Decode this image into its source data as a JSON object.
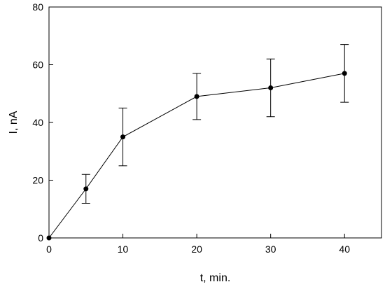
{
  "chart_data": {
    "type": "line",
    "title": "",
    "xlabel": "t, min.",
    "ylabel": "I, nA",
    "xlim": [
      0,
      45
    ],
    "ylim": [
      0,
      80
    ],
    "xticks": [
      0,
      10,
      20,
      30,
      40
    ],
    "yticks": [
      0,
      20,
      40,
      60,
      80
    ],
    "grid": false,
    "legend": "none",
    "series": [
      {
        "x": [
          0,
          5,
          10,
          20,
          30,
          40
        ],
        "y": [
          0,
          17,
          35,
          49,
          52,
          57
        ],
        "error_low": [
          0,
          12,
          25,
          41,
          42,
          47
        ],
        "error_high": [
          0,
          22,
          45,
          57,
          62,
          67
        ],
        "color": "#000000",
        "marker": "circle"
      }
    ]
  }
}
